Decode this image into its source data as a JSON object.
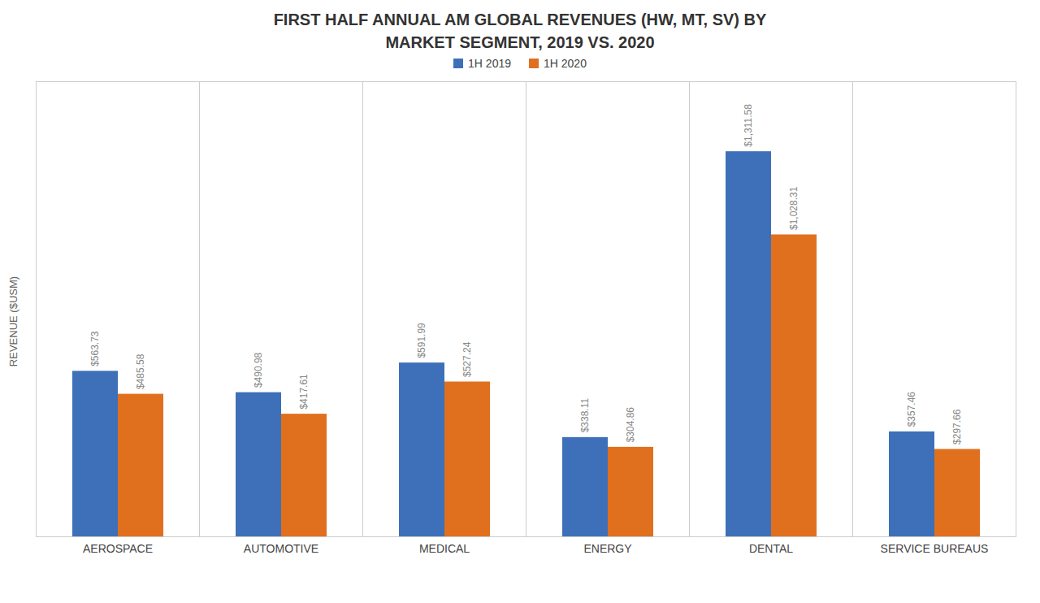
{
  "chart_data": {
    "type": "bar",
    "title": "FIRST HALF ANNUAL AM GLOBAL REVENUES (HW, MT, SV) BY\nMARKET SEGMENT, 2019 VS. 2020",
    "categories": [
      "AEROSPACE",
      "AUTOMOTIVE",
      "MEDICAL",
      "ENERGY",
      "DENTAL",
      "SERVICE BUREAUS"
    ],
    "series": [
      {
        "name": "1H 2019",
        "color": "#3d70b8",
        "values": [
          563.73,
          490.98,
          591.99,
          338.11,
          1311.58,
          357.46
        ],
        "value_labels": [
          "$563.73",
          "$490.98",
          "$591.99",
          "$338.11",
          "$1,311.58",
          "$357.46"
        ]
      },
      {
        "name": "1H 2020",
        "color": "#e0701e",
        "values": [
          485.58,
          417.61,
          527.24,
          304.86,
          1028.31,
          297.66
        ],
        "value_labels": [
          "$485.58",
          "$417.61",
          "$527.24",
          "$304.86",
          "$1,028.31",
          "$297.66"
        ]
      }
    ],
    "ylabel": "REVENUE ($USM)",
    "ylim": [
      0,
      1550
    ],
    "yticks": [],
    "tick_labels": "x",
    "data_labels": true,
    "grid": false,
    "legend": "top"
  }
}
